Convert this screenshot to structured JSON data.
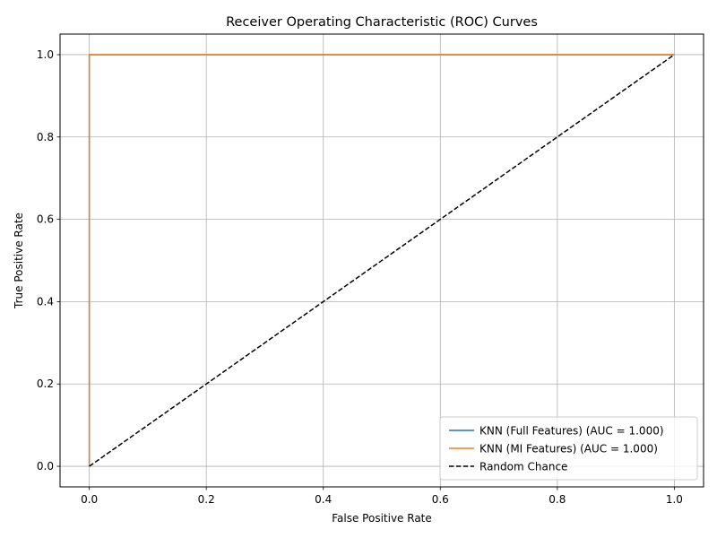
{
  "chart_data": {
    "type": "line",
    "title": "Receiver Operating Characteristic (ROC) Curves",
    "xlabel": "False Positive Rate",
    "ylabel": "True Positive Rate",
    "xlim": [
      -0.05,
      1.05
    ],
    "ylim": [
      -0.05,
      1.05
    ],
    "xticks": [
      0.0,
      0.2,
      0.4,
      0.6,
      0.8,
      1.0
    ],
    "yticks": [
      0.0,
      0.2,
      0.4,
      0.6,
      0.8,
      1.0
    ],
    "xtick_labels": [
      "0.0",
      "0.2",
      "0.4",
      "0.6",
      "0.8",
      "1.0"
    ],
    "ytick_labels": [
      "0.0",
      "0.2",
      "0.4",
      "0.6",
      "0.8",
      "1.0"
    ],
    "grid": true,
    "legend_position": "lower-right",
    "series": [
      {
        "name": "KNN (Full Features) (AUC = 1.000)",
        "color": "#1f77b4",
        "style": "solid",
        "x": [
          0.0,
          0.0,
          1.0
        ],
        "y": [
          0.0,
          1.0,
          1.0
        ]
      },
      {
        "name": "KNN (MI Features) (AUC = 1.000)",
        "color": "#ff7f0e",
        "style": "solid",
        "x": [
          0.0,
          0.0,
          1.0
        ],
        "y": [
          0.0,
          1.0,
          1.0
        ]
      },
      {
        "name": "Random Chance",
        "color": "#000000",
        "style": "dashed",
        "x": [
          0.0,
          1.0
        ],
        "y": [
          0.0,
          1.0
        ]
      }
    ]
  }
}
